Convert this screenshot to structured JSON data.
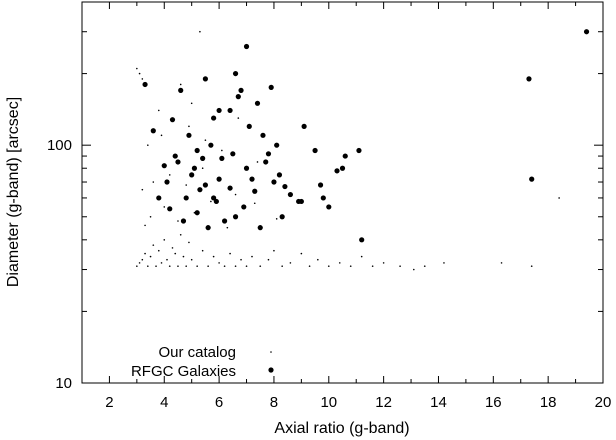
{
  "chart_data": {
    "type": "scatter",
    "title": "",
    "xlabel": "Axial ratio (g-band)",
    "ylabel": "Diameter (g-band) [arcsec]",
    "xlim": [
      1,
      20
    ],
    "ylim": [
      10,
      400
    ],
    "yscale": "log",
    "grid": false,
    "legend_position": "bottom-left",
    "x_ticks": [
      2,
      4,
      6,
      8,
      10,
      12,
      14,
      16,
      18,
      20
    ],
    "x_tick_labels": [
      "2",
      "4",
      "6",
      "8",
      "10",
      "12",
      "14",
      "16",
      "18",
      "20"
    ],
    "y_ticks": [
      10,
      100
    ],
    "y_tick_labels": [
      "10",
      "100"
    ],
    "series": [
      {
        "name": "Our catalog",
        "marker": "small-dot",
        "color": "#000000",
        "x": [
          3.0,
          3.1,
          3.2,
          3.3,
          3.4,
          3.5,
          3.6,
          3.7,
          3.8,
          3.9,
          4.0,
          4.1,
          4.2,
          4.3,
          4.4,
          4.5,
          4.6,
          4.7,
          4.8,
          4.9,
          5.0,
          5.2,
          5.4,
          5.6,
          5.8,
          6.0,
          6.2,
          6.4,
          6.6,
          6.8,
          7.0,
          7.2,
          7.5,
          7.8,
          8.0,
          8.3,
          8.6,
          9.0,
          9.3,
          9.6,
          10.0,
          10.4,
          10.8,
          11.2,
          11.6,
          12.0,
          12.6,
          13.1,
          13.5,
          14.2,
          16.3,
          17.4,
          18.4,
          3.3,
          3.5,
          4.0,
          4.5,
          5.1,
          5.7,
          6.3,
          3.2,
          3.6,
          4.2,
          4.8,
          5.4,
          6.0,
          6.6,
          7.3,
          8.1,
          3.4,
          3.9,
          4.4,
          4.9,
          5.5,
          6.1,
          6.7,
          7.4,
          5.3,
          5.0,
          4.6,
          3.8,
          3.0,
          3.1,
          3.2
        ],
        "y": [
          31,
          32,
          33,
          35,
          31,
          34,
          38,
          31,
          36,
          32,
          40,
          33,
          31,
          37,
          35,
          31,
          42,
          34,
          31,
          39,
          33,
          31,
          36,
          31,
          34,
          32,
          31,
          35,
          31,
          33,
          31,
          34,
          31,
          33,
          36,
          31,
          32,
          35,
          31,
          33,
          31,
          32,
          31,
          34,
          31,
          32,
          31,
          30,
          31,
          32,
          32,
          31,
          60,
          46,
          50,
          55,
          48,
          52,
          58,
          45,
          65,
          70,
          75,
          68,
          80,
          72,
          62,
          57,
          49,
          100,
          110,
          90,
          120,
          105,
          95,
          130,
          85,
          300,
          150,
          180,
          140,
          210,
          200,
          190
        ]
      },
      {
        "name": "RFGC Galaxies",
        "marker": "large-dot",
        "color": "#000000",
        "x": [
          3.3,
          3.6,
          4.0,
          4.3,
          4.6,
          4.8,
          5.0,
          5.2,
          5.4,
          5.5,
          5.7,
          5.9,
          6.0,
          6.2,
          6.4,
          6.5,
          6.7,
          6.9,
          7.1,
          7.3,
          7.5,
          7.7,
          8.0,
          8.3,
          8.6,
          9.1,
          9.5,
          10.0,
          10.6,
          11.1,
          10.3,
          9.8,
          8.9,
          8.2,
          7.6,
          7.0,
          6.4,
          5.8,
          5.2,
          4.7,
          4.2,
          3.8,
          4.1,
          4.5,
          4.9,
          5.3,
          5.6,
          6.1,
          6.6,
          7.2,
          7.8,
          8.4,
          9.0,
          9.7,
          10.5,
          11.2,
          6.8,
          7.4,
          8.1,
          6.0,
          5.5,
          17.3,
          17.4,
          19.4,
          6.6,
          7.9,
          5.8,
          4.4,
          5.1,
          7.0
        ],
        "y": [
          180,
          115,
          82,
          128,
          170,
          60,
          75,
          52,
          88,
          68,
          100,
          58,
          72,
          48,
          140,
          92,
          160,
          55,
          120,
          64,
          45,
          85,
          70,
          50,
          62,
          120,
          95,
          55,
          90,
          95,
          78,
          60,
          58,
          75,
          110,
          80,
          66,
          130,
          95,
          48,
          54,
          60,
          70,
          85,
          110,
          65,
          45,
          88,
          50,
          72,
          92,
          67,
          58,
          68,
          80,
          40,
          170,
          150,
          100,
          140,
          190,
          190,
          72,
          300,
          200,
          175,
          60,
          90,
          80,
          260
        ]
      }
    ]
  }
}
